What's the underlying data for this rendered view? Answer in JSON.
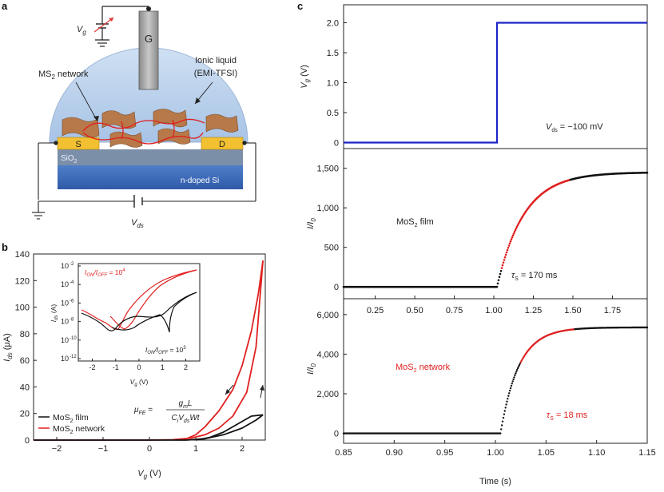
{
  "figure": {
    "panels": {
      "a": "a",
      "b": "b",
      "c": "c"
    },
    "schematic": {
      "gate_voltage": "V",
      "gate_voltage_sub": "g",
      "gate_label": "G",
      "ionic_liquid": "Ionic liquid",
      "ionic_liquid_name": "(EMI-TFSI)",
      "network_label": "MS",
      "network_label_sub": "2",
      "network_label_suffix": "network",
      "source": "S",
      "drain": "D",
      "oxide": "SiO",
      "oxide_sub": "2",
      "substrate": "n-doped Si",
      "vds": "V",
      "vds_sub": "ds"
    },
    "panel_b": {
      "annotation_formula_left": "μ",
      "annotation_formula_left_sub": "FE",
      "annotation_formula_num": "g",
      "annotation_formula_num_sub": "m",
      "annotation_formula_num_tail": "L",
      "annotation_formula_den": "C",
      "annotation_formula_den_sub1": "i",
      "annotation_formula_den_mid": "V",
      "annotation_formula_den_sub2": "ds",
      "annotation_formula_den_tail": "Wt",
      "inset_ratio_red": "I",
      "inset_ratio_red_sub1": "ON",
      "inset_ratio_red_mid": "/I",
      "inset_ratio_red_sub2": "OFF",
      "inset_ratio_red_val": " = 10",
      "inset_ratio_red_exp": "4",
      "inset_ratio_black_val": " = 10",
      "inset_ratio_black_exp": "3",
      "inset_ylabel": "I",
      "inset_ylabel_sub": "ds",
      "inset_ylabel_unit": " (A)",
      "inset_xlabel": "V",
      "inset_xlabel_sub": "g",
      "inset_xlabel_unit": " (V)",
      "inset_yticks": [
        "10",
        "10",
        "10",
        "10",
        "10",
        "10"
      ],
      "inset_yexps": [
        "-2",
        "-4",
        "-6",
        "-8",
        "-10",
        "-12"
      ],
      "inset_xticks": [
        "-2",
        "-1",
        "0",
        "1",
        "2"
      ]
    },
    "panel_c": {
      "vds_text": "V",
      "vds_sub": "ds",
      "vds_value": " = −100 mV",
      "film_label": "MoS",
      "film_label_sub": "2",
      "film_label_suffix": " film",
      "film_tau": "τ",
      "film_tau_sub": "S",
      "film_tau_value": " = 170 ms",
      "network_label": "MoS",
      "network_label_sub": "2",
      "network_label_suffix": " network",
      "network_tau": "τ",
      "network_tau_sub": "S",
      "network_tau_value": " = 18 ms",
      "ylabel_norm": "I/I",
      "ylabel_norm_sub": "0"
    }
  },
  "chart_data": [
    {
      "id": "b",
      "type": "line",
      "xlabel": "V",
      "xlabel_sub": "g",
      "xlabel_unit": " (V)",
      "ylabel": "I",
      "ylabel_sub": "ds",
      "ylabel_unit": " (μA)",
      "xlim": [
        -2.5,
        2.5
      ],
      "ylim": [
        0,
        140
      ],
      "xticks": [
        -2,
        -1,
        0,
        1,
        2
      ],
      "yticks": [
        0,
        20,
        40,
        60,
        80,
        100,
        120,
        140
      ],
      "xtick_labels": [
        "−2",
        "−1",
        "0",
        "1",
        "2"
      ],
      "ytick_labels": [
        "0",
        "20",
        "40",
        "60",
        "80",
        "100",
        "120",
        "140"
      ],
      "legend": [
        {
          "name": "MoS",
          "sub": "2",
          "suffix": " film",
          "color": "#111111"
        },
        {
          "name": "MoS",
          "sub": "2",
          "suffix": " network",
          "color": "#e02020"
        }
      ],
      "series": [
        {
          "name": "MoS2 network forward",
          "color": "#e02020",
          "x": [
            -2.5,
            0,
            0.5,
            0.9,
            1.2,
            1.5,
            1.8,
            2.1,
            2.3,
            2.45
          ],
          "y": [
            0,
            0,
            0.3,
            1.5,
            4,
            9,
            18,
            36,
            70,
            135
          ]
        },
        {
          "name": "MoS2 network reverse",
          "color": "#e02020",
          "x": [
            2.45,
            2.35,
            2.2,
            2.0,
            1.8,
            1.5,
            1.2,
            1.0,
            0.8,
            0.6
          ],
          "y": [
            135,
            110,
            82,
            56,
            38,
            22,
            10,
            4,
            1,
            0
          ]
        },
        {
          "name": "MoS2 film forward",
          "color": "#111111",
          "x": [
            -2.5,
            0.8,
            1.2,
            1.6,
            2.0,
            2.3,
            2.45
          ],
          "y": [
            0,
            0,
            1,
            4,
            9,
            15,
            19
          ]
        },
        {
          "name": "MoS2 film reverse",
          "color": "#111111",
          "x": [
            2.45,
            2.2,
            1.9,
            1.6,
            1.3,
            1.0
          ],
          "y": [
            19,
            18,
            12,
            6,
            2,
            0
          ]
        }
      ]
    },
    {
      "id": "c-top",
      "type": "line",
      "ylabel": "V",
      "ylabel_sub": "g",
      "ylabel_unit": " (V)",
      "xlim": [
        0.05,
        1.97
      ],
      "ylim": [
        -0.1,
        2.3
      ],
      "yticks": [
        0,
        0.5,
        1.0,
        1.5,
        2.0
      ],
      "ytick_labels": [
        "0",
        "0.5",
        "1.0",
        "1.5",
        "2.0"
      ],
      "series": [
        {
          "name": "Vg step",
          "color": "#1c24c8",
          "x": [
            0.05,
            1.02,
            1.02,
            1.97
          ],
          "y": [
            0,
            0,
            2.0,
            2.0
          ]
        }
      ]
    },
    {
      "id": "c-mid",
      "type": "scatter",
      "ylabel": "I/I",
      "ylabel_sub": "0",
      "xlim": [
        0.05,
        1.97
      ],
      "ylim": [
        -150,
        1750
      ],
      "xticks": [
        0.25,
        0.5,
        0.75,
        1.0,
        1.25,
        1.5,
        1.75
      ],
      "xtick_labels": [
        "0.25",
        "0.50",
        "0.75",
        "1.00",
        "1.25",
        "1.50",
        "1.75"
      ],
      "yticks": [
        0,
        500,
        1000,
        1500
      ],
      "ytick_labels": [
        "0",
        "500",
        "1,000",
        "1,500"
      ],
      "model": {
        "t0": 1.02,
        "tau": 0.17,
        "amplitude": 1450,
        "fit_range": [
          1.05,
          1.48
        ]
      }
    },
    {
      "id": "c-bot",
      "type": "scatter",
      "ylabel": "I/I",
      "ylabel_sub": "0",
      "xlabel": "Time (s)",
      "xlim": [
        0.85,
        1.15
      ],
      "ylim": [
        -500,
        6800
      ],
      "xticks": [
        0.85,
        0.9,
        0.95,
        1.0,
        1.05,
        1.1,
        1.15
      ],
      "xtick_labels": [
        "0.85",
        "0.90",
        "0.95",
        "1.00",
        "1.05",
        "1.10",
        "1.15"
      ],
      "yticks": [
        0,
        2000,
        4000,
        6000
      ],
      "ytick_labels": [
        "0",
        "2,000",
        "4,000",
        "6,000"
      ],
      "model": {
        "t0": 1.005,
        "tau": 0.018,
        "amplitude": 5350,
        "fit_range": [
          1.025,
          1.078
        ]
      }
    }
  ]
}
